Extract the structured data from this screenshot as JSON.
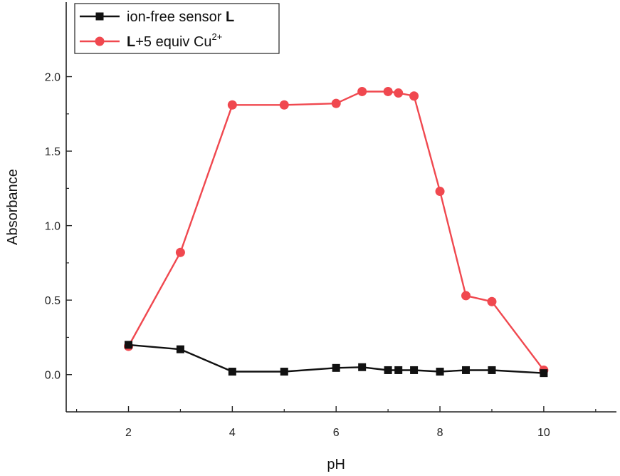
{
  "chart_data": {
    "type": "line",
    "title": "",
    "xlabel": "pH",
    "ylabel": "Absorbance",
    "xlim": [
      0.8,
      11.4
    ],
    "ylim": [
      -0.25,
      2.5
    ],
    "xticks": [
      2,
      4,
      6,
      8,
      10
    ],
    "yticks": [
      0.0,
      0.5,
      1.0,
      1.5,
      2.0
    ],
    "ytick_labels": [
      "0.0",
      "0.5",
      "1.0",
      "1.5",
      "2.0"
    ],
    "grid": false,
    "legend_position": "top-left",
    "x": [
      2,
      3,
      4,
      5,
      6,
      6.5,
      7,
      7.2,
      7.5,
      8,
      8.5,
      9,
      10
    ],
    "series": [
      {
        "name": "ion-free sensor L",
        "legend_text": "ion-free sensor ",
        "legend_bold": "L",
        "legend_sup": "",
        "color": "#111111",
        "marker": "square",
        "values": [
          0.2,
          0.17,
          0.02,
          0.02,
          0.045,
          0.05,
          0.03,
          0.03,
          0.03,
          0.02,
          0.03,
          0.03,
          0.01
        ]
      },
      {
        "name": "L+5 equiv Cu2+",
        "legend_text": "+5 equiv Cu",
        "legend_bold": "L",
        "legend_sup": "2+",
        "color": "#f0484f",
        "marker": "circle",
        "values": [
          0.19,
          0.82,
          1.81,
          1.81,
          1.82,
          1.9,
          1.9,
          1.89,
          1.87,
          1.23,
          0.53,
          0.49,
          0.03
        ]
      }
    ]
  }
}
